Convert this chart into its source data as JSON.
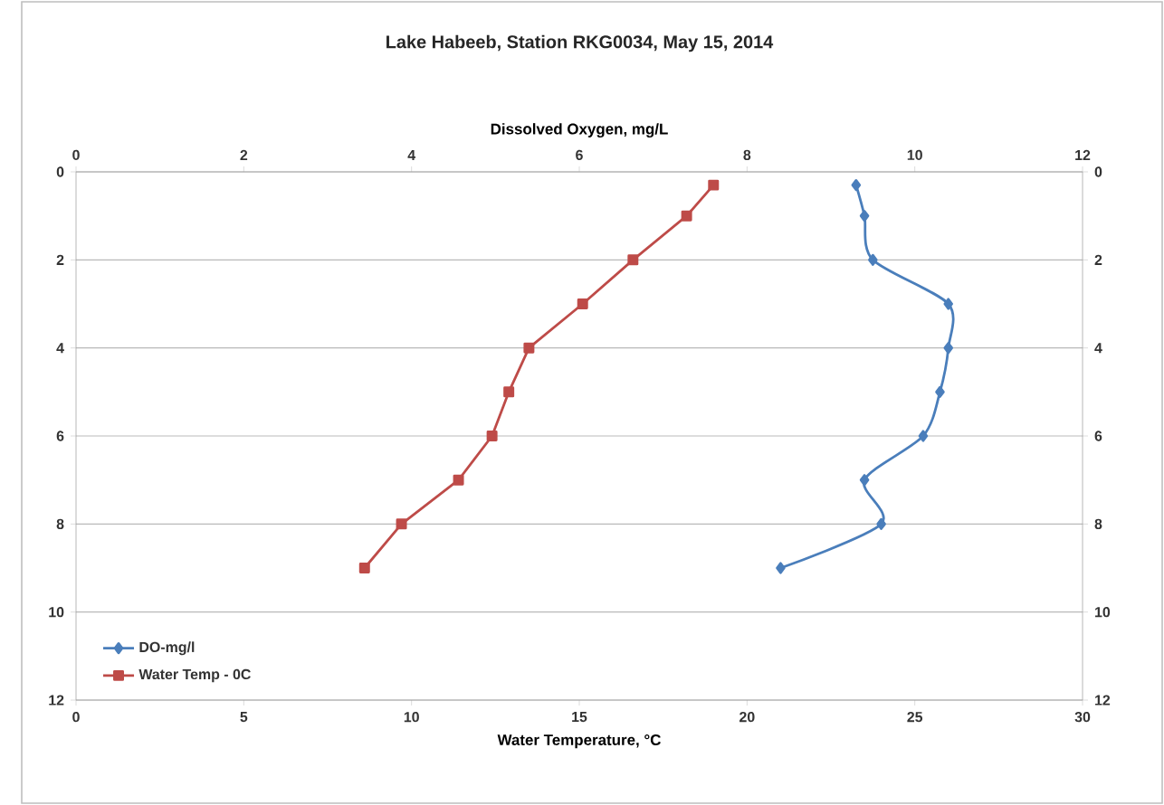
{
  "chart_data": {
    "type": "line",
    "title": "Lake Habeeb, Station RKG0034,  May 15, 2014",
    "xlabel": "Water Temperature, °C",
    "x2label": "Dissolved Oxygen, mg/L",
    "xlim": [
      0,
      30
    ],
    "xticks": [
      0,
      5,
      10,
      15,
      20,
      25,
      30
    ],
    "x2lim": [
      0,
      12
    ],
    "x2ticks": [
      0,
      2,
      4,
      6,
      8,
      10,
      12
    ],
    "ylim": [
      12,
      0
    ],
    "yticks": [
      0,
      2,
      4,
      6,
      8,
      10,
      12
    ],
    "y2lim": [
      12,
      0
    ],
    "y2ticks": [
      0,
      2,
      4,
      6,
      8,
      10,
      12
    ],
    "grid": "y",
    "legend": "bottom left",
    "series": [
      {
        "name": "DO-mg/l",
        "color": "#4a7ebb",
        "axis": "x2",
        "marker": "diamond",
        "x": [
          9.3,
          9.4,
          9.5,
          10.4,
          10.4,
          10.3,
          10.1,
          9.4,
          9.6,
          8.4
        ],
        "values": [
          0.3,
          1,
          2,
          3,
          4,
          5,
          6,
          7,
          8,
          9
        ]
      },
      {
        "name": "Water Temp - 0C",
        "color": "#be4b48",
        "marker": "square",
        "x": [
          19.0,
          18.2,
          16.6,
          15.1,
          13.5,
          12.9,
          12.4,
          11.4,
          9.7,
          8.6
        ],
        "values": [
          0.3,
          1,
          2,
          3,
          4,
          5,
          6,
          7,
          8,
          9
        ]
      }
    ]
  }
}
